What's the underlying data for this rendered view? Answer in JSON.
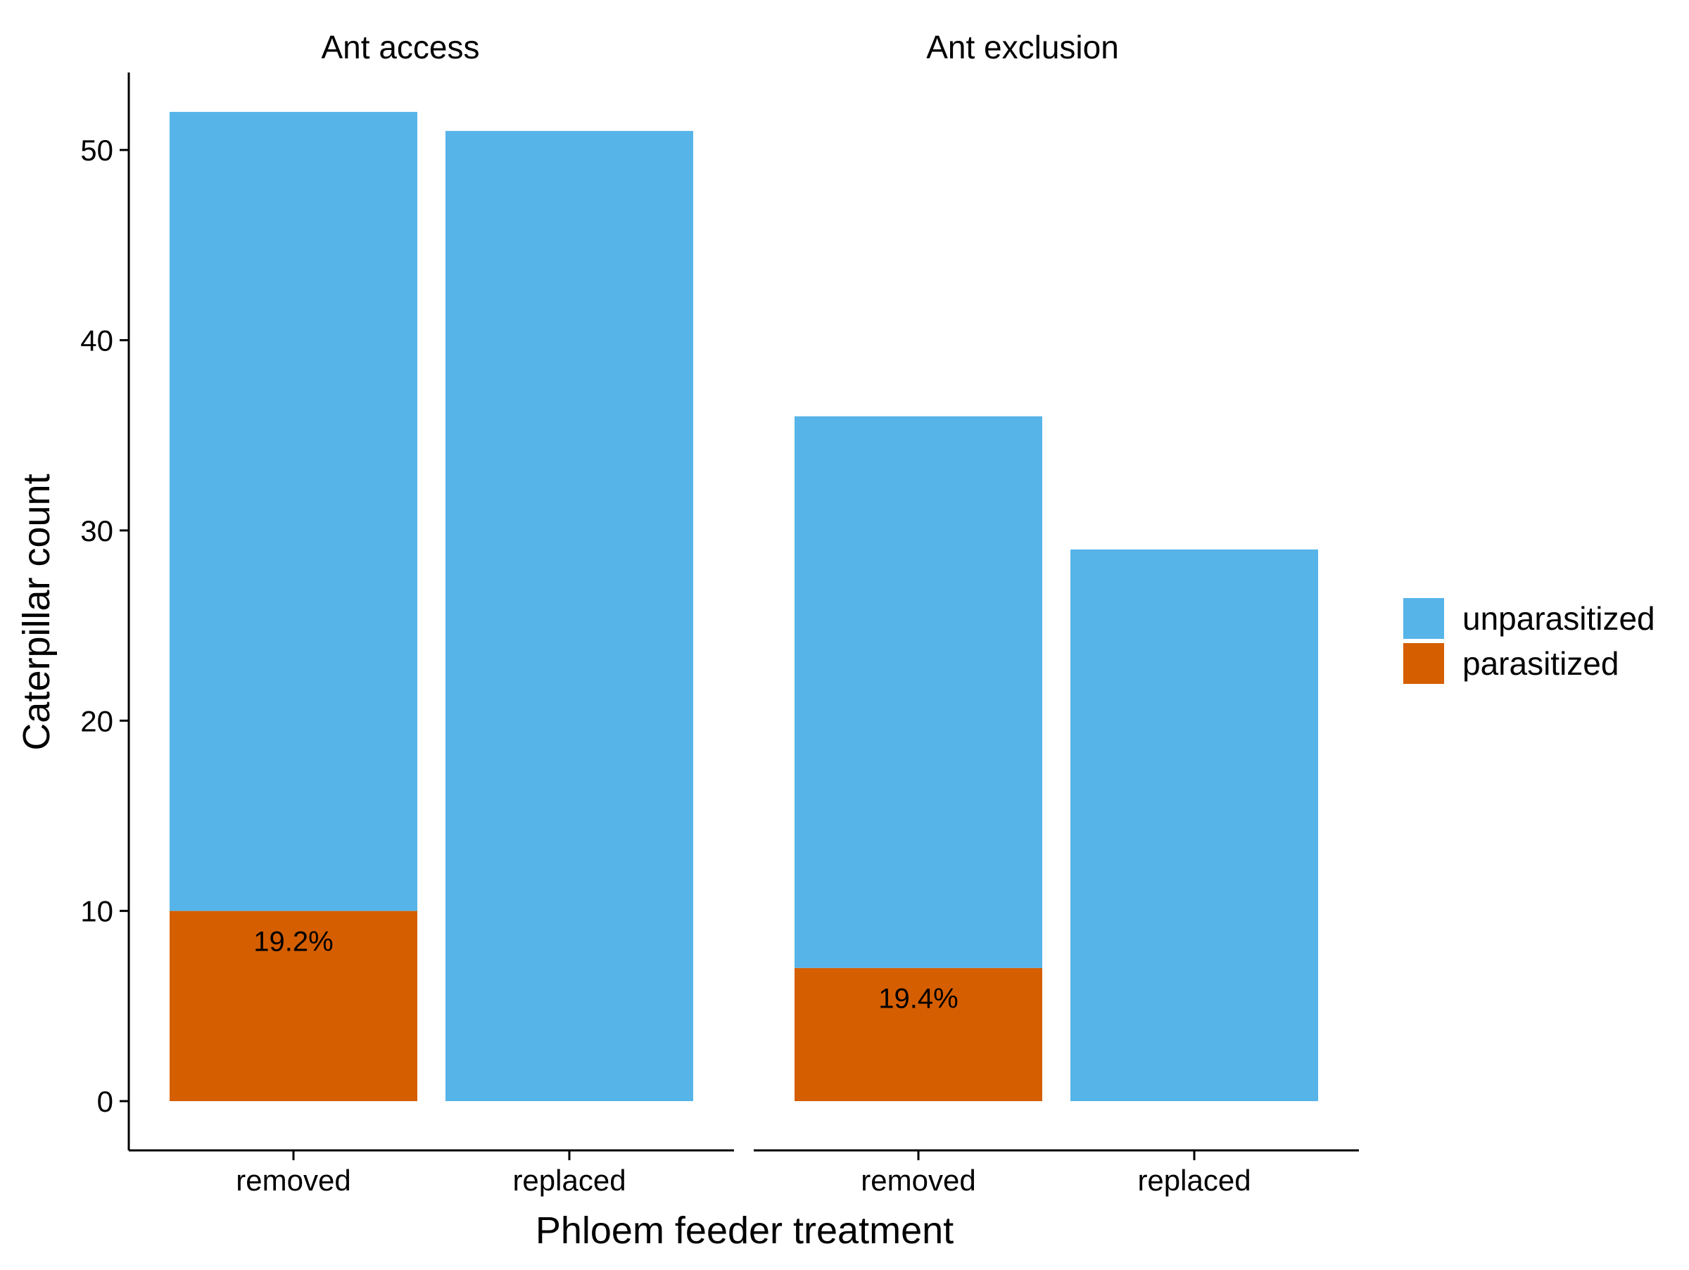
{
  "chart_data": {
    "type": "bar",
    "stacked": true,
    "xlabel": "Phloem feeder treatment",
    "ylabel": "Caterpillar count",
    "ylim": [
      0,
      55
    ],
    "yticks": [
      0,
      10,
      20,
      30,
      40,
      50
    ],
    "grid": false,
    "legend_position": "right",
    "categories": [
      "removed",
      "replaced"
    ],
    "panels": [
      {
        "label": "Ant access",
        "series": [
          {
            "name": "parasitized",
            "values": [
              10,
              0
            ]
          },
          {
            "name": "unparasitized",
            "values": [
              42,
              51
            ]
          }
        ],
        "annotations": [
          "19.2%",
          ""
        ]
      },
      {
        "label": "Ant exclusion",
        "series": [
          {
            "name": "parasitized",
            "values": [
              7,
              0
            ]
          },
          {
            "name": "unparasitized",
            "values": [
              29,
              29
            ]
          }
        ],
        "annotations": [
          "19.4%",
          ""
        ]
      }
    ],
    "legend": [
      {
        "name": "unparasitized",
        "color": "#56B4E9"
      },
      {
        "name": "parasitized",
        "color": "#D55E00"
      }
    ]
  }
}
